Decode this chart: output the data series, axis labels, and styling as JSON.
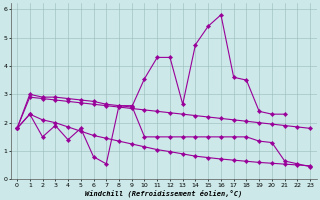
{
  "xlabel": "Windchill (Refroidissement éolien,°C)",
  "background_color": "#cce8e8",
  "line_color": "#990099",
  "xlim": [
    -0.5,
    23.5
  ],
  "ylim": [
    0,
    6.2
  ],
  "xticks": [
    0,
    1,
    2,
    3,
    4,
    5,
    6,
    7,
    8,
    9,
    10,
    11,
    12,
    13,
    14,
    15,
    16,
    17,
    18,
    19,
    20,
    21,
    22,
    23
  ],
  "yticks": [
    0,
    1,
    2,
    3,
    4,
    5,
    6
  ],
  "s1_x": [
    0,
    1,
    2,
    3,
    4,
    5,
    6,
    7,
    8,
    9,
    10,
    11,
    12,
    13,
    14,
    15,
    16,
    17,
    18,
    19,
    20,
    21
  ],
  "s1_y": [
    1.8,
    3.0,
    2.9,
    2.9,
    2.85,
    2.8,
    2.75,
    2.65,
    2.6,
    2.55,
    3.55,
    4.3,
    4.3,
    2.65,
    4.75,
    5.4,
    5.8,
    3.6,
    3.5,
    2.4,
    2.3,
    2.3
  ],
  "s2_x": [
    0,
    1,
    2,
    3,
    4,
    5,
    6,
    7,
    8,
    9,
    10,
    11,
    12,
    13,
    14,
    15,
    16,
    17,
    18,
    19,
    20,
    21,
    22,
    23
  ],
  "s2_y": [
    1.8,
    2.3,
    1.5,
    1.9,
    1.4,
    1.8,
    0.8,
    0.55,
    2.6,
    2.6,
    1.5,
    1.5,
    1.5,
    1.5,
    1.5,
    1.5,
    1.5,
    1.5,
    1.5,
    1.35,
    1.3,
    0.65,
    0.55,
    0.45
  ],
  "s3_x": [
    0,
    1,
    2,
    3,
    4,
    5,
    6,
    7,
    8,
    9,
    10,
    11,
    12,
    13,
    14,
    15,
    16,
    17,
    18,
    19,
    20,
    21,
    22,
    23
  ],
  "s3_y": [
    1.8,
    2.9,
    2.85,
    2.8,
    2.75,
    2.7,
    2.65,
    2.6,
    2.55,
    2.5,
    2.45,
    2.4,
    2.35,
    2.3,
    2.25,
    2.2,
    2.15,
    2.1,
    2.05,
    2.0,
    1.95,
    1.9,
    1.85,
    1.8
  ],
  "s4_x": [
    0,
    1,
    2,
    3,
    4,
    5,
    6,
    7,
    8,
    9,
    10,
    11,
    12,
    13,
    14,
    15,
    16,
    17,
    18,
    19,
    20,
    21,
    22,
    23
  ],
  "s4_y": [
    1.8,
    2.3,
    2.1,
    2.0,
    1.85,
    1.7,
    1.55,
    1.45,
    1.35,
    1.25,
    1.15,
    1.05,
    0.98,
    0.9,
    0.82,
    0.77,
    0.72,
    0.68,
    0.64,
    0.6,
    0.57,
    0.54,
    0.51,
    0.48
  ]
}
